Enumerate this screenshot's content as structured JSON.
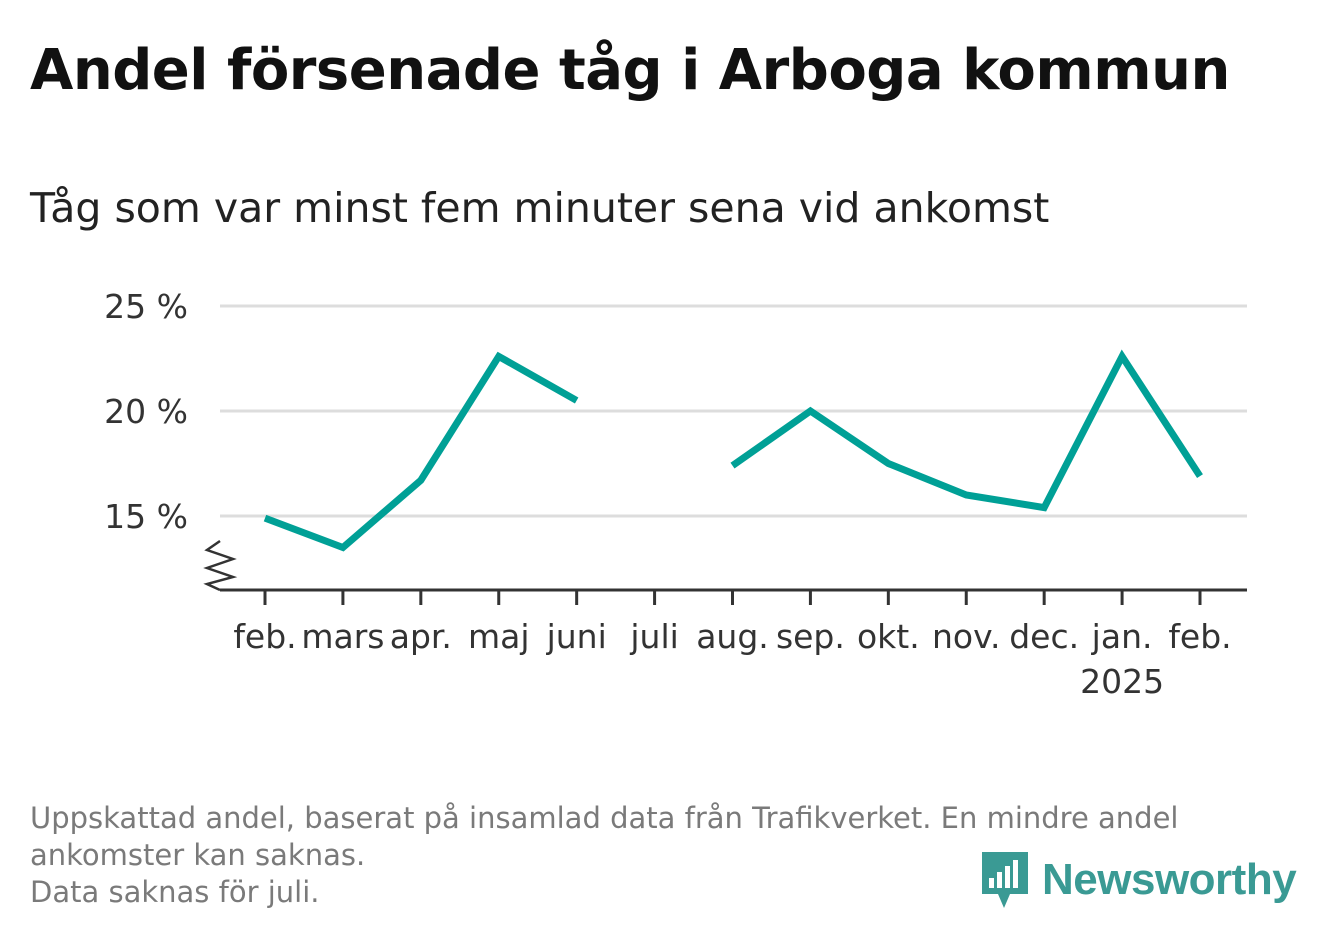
{
  "title": "Andel försenade tåg i Arboga kommun",
  "subtitle": "Tåg som var minst fem minuter sena vid ankomst",
  "footer": {
    "line1": "Uppskattad andel, baserat på insamlad data från Trafikverket. En mindre andel",
    "line2": "ankomster kan saknas.",
    "line3": "Data saknas för juli."
  },
  "logo": {
    "text": "Newsworthy",
    "icon": "newsworthy-logo-icon"
  },
  "colors": {
    "line": "#00a096",
    "grid": "#dddddd",
    "axis": "#333333",
    "logo": "#3a9a94"
  },
  "chart_data": {
    "type": "line",
    "title": "Andel försenade tåg i Arboga kommun",
    "subtitle": "Tåg som var minst fem minuter sena vid ankomst",
    "categories": [
      "feb.",
      "mars",
      "apr.",
      "maj",
      "juni",
      "juli",
      "aug.",
      "sep.",
      "okt.",
      "nov.",
      "dec.",
      "jan.",
      "feb."
    ],
    "category_sublabels": [
      "",
      "",
      "",
      "",
      "",
      "",
      "",
      "",
      "",
      "",
      "",
      "2025",
      ""
    ],
    "values": [
      14.9,
      13.5,
      16.7,
      22.6,
      20.5,
      null,
      17.4,
      20.0,
      17.5,
      16.0,
      15.4,
      22.6,
      16.9
    ],
    "yticks": [
      15,
      20,
      25
    ],
    "ytick_labels": [
      "15 %",
      "20 %",
      "25 %"
    ],
    "ylim": [
      11.5,
      25
    ],
    "y_axis_break": true,
    "grid": true,
    "legend": "none"
  }
}
